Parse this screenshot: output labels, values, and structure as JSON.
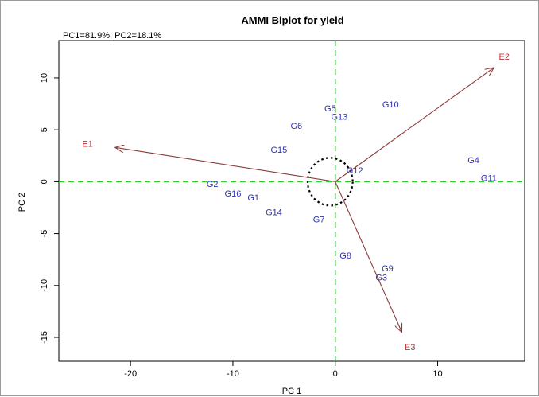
{
  "chart_data": {
    "type": "scatter",
    "title": "AMMI Biplot for yield",
    "subtitle": "PC1=81.9%; PC2=18.1%",
    "xlabel": "PC 1",
    "ylabel": "PC 2",
    "xlim": [
      -27,
      18.5
    ],
    "ylim": [
      -17.3,
      13.6
    ],
    "xticks": [
      -20,
      -10,
      0,
      10
    ],
    "yticks": [
      -15,
      -10,
      -5,
      0,
      5,
      10
    ],
    "grid": false,
    "reference_lines": {
      "x": 0,
      "y": 0,
      "color": "#33cc33",
      "style": "dashed"
    },
    "genotypes": [
      {
        "label": "G1",
        "x": -8.0,
        "y": -1.6
      },
      {
        "label": "G2",
        "x": -12.0,
        "y": -0.3
      },
      {
        "label": "G3",
        "x": 4.5,
        "y": -9.3
      },
      {
        "label": "G4",
        "x": 13.5,
        "y": 2.0
      },
      {
        "label": "G5",
        "x": -0.5,
        "y": 7.0
      },
      {
        "label": "G6",
        "x": -3.8,
        "y": 5.3
      },
      {
        "label": "G7",
        "x": -1.6,
        "y": -3.7
      },
      {
        "label": "G8",
        "x": 1.0,
        "y": -7.2
      },
      {
        "label": "G9",
        "x": 5.1,
        "y": -8.4
      },
      {
        "label": "G10",
        "x": 5.4,
        "y": 7.4
      },
      {
        "label": "G11",
        "x": 15.0,
        "y": 0.3
      },
      {
        "label": "G12",
        "x": 1.9,
        "y": 1.0
      },
      {
        "label": "G13",
        "x": 0.4,
        "y": 6.2
      },
      {
        "label": "G14",
        "x": -6.0,
        "y": -3.0
      },
      {
        "label": "G15",
        "x": -5.5,
        "y": 3.0
      },
      {
        "label": "G16",
        "x": -10.0,
        "y": -1.2
      }
    ],
    "environments": [
      {
        "label": "E1",
        "x": -21.5,
        "y": 3.3,
        "label_x": -24.2,
        "label_y": 3.6
      },
      {
        "label": "E2",
        "x": 15.5,
        "y": 11.0,
        "label_x": 16.5,
        "label_y": 12.0
      },
      {
        "label": "E3",
        "x": 6.5,
        "y": -14.5,
        "label_x": 7.3,
        "label_y": -16.0
      }
    ],
    "origin_ellipse": {
      "cx": -0.5,
      "cy": 0.0,
      "rx": 2.2,
      "ry": 2.3
    },
    "colors": {
      "genotype": "#3030b0",
      "environment": "#c03030",
      "vector": "#8b3a3a",
      "reference": "#33cc33"
    }
  }
}
